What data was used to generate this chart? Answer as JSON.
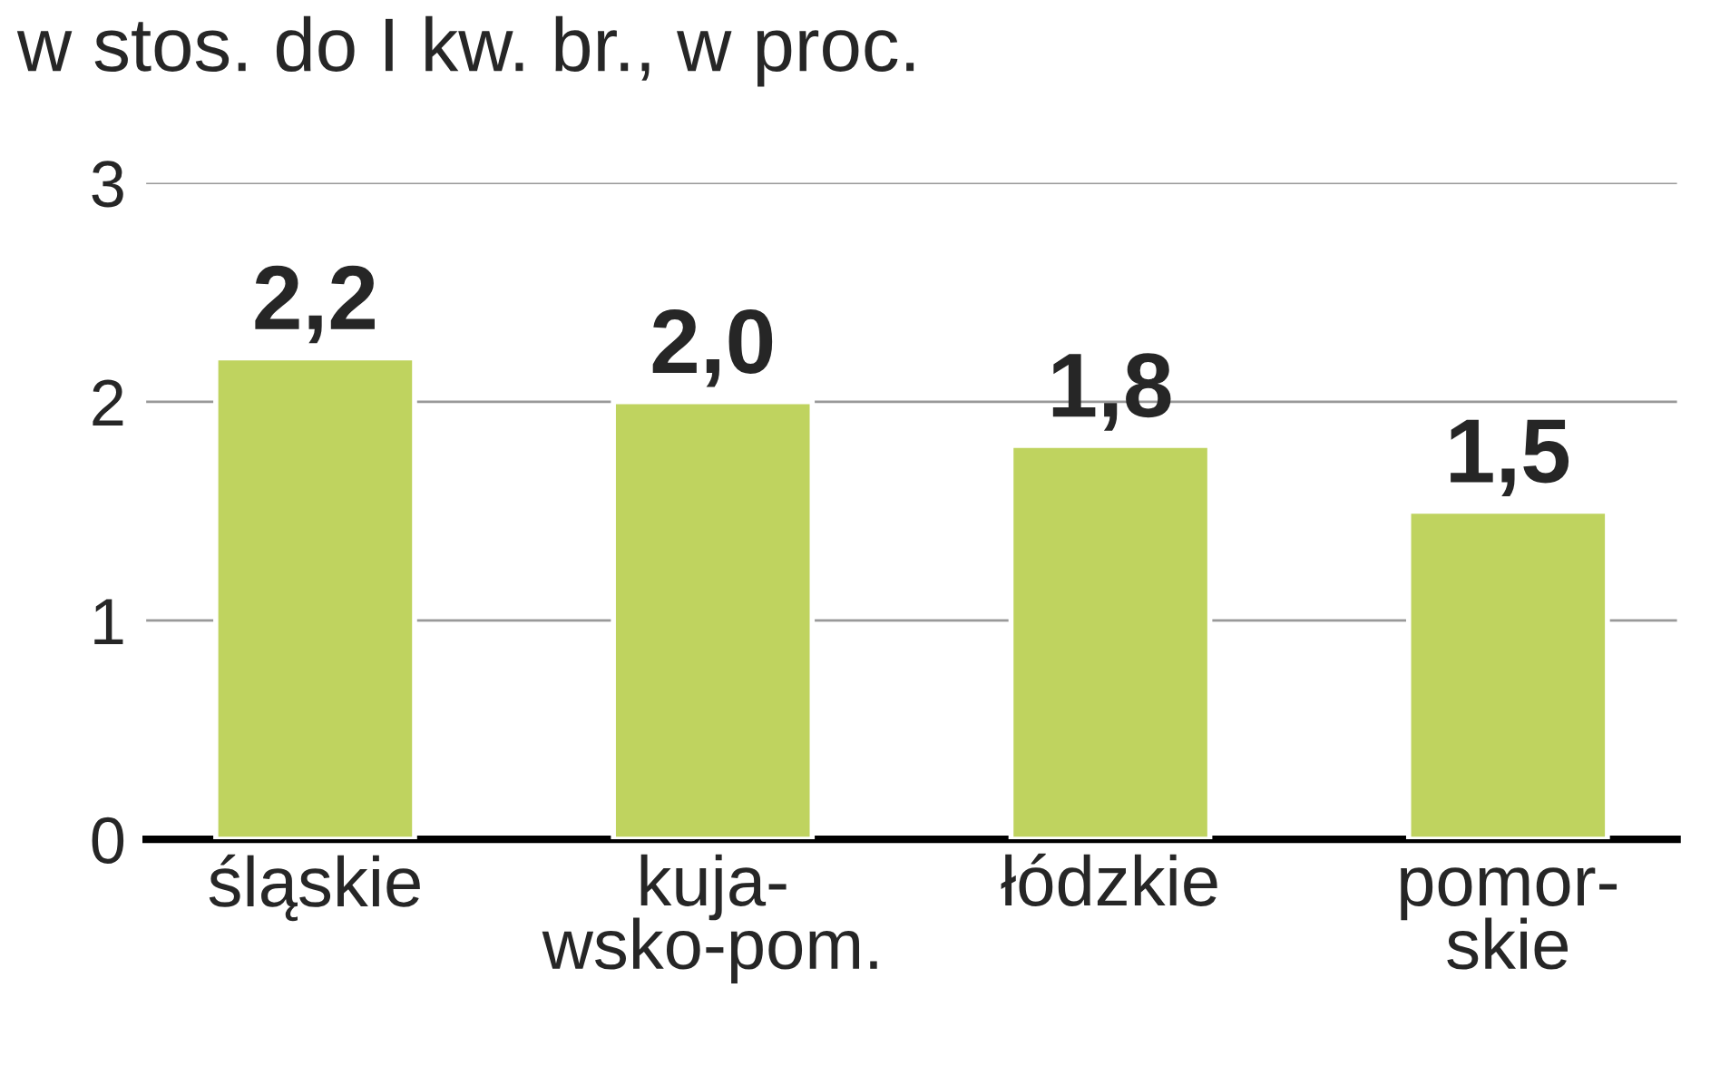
{
  "chart_data": {
    "type": "bar",
    "title": "w stos. do I kw. br., w proc.",
    "categories": [
      "śląskie",
      "kuja-\nwsko-pom.",
      "łódzkie",
      "pomor-\nskie"
    ],
    "values": [
      2.2,
      2.0,
      1.8,
      1.5
    ],
    "value_labels": [
      "2,2",
      "2,0",
      "1,8",
      "1,5"
    ],
    "color": "#bfd35f",
    "ylim": [
      0,
      3
    ],
    "yticks": [
      0,
      1,
      2,
      3
    ],
    "grid": "y"
  }
}
